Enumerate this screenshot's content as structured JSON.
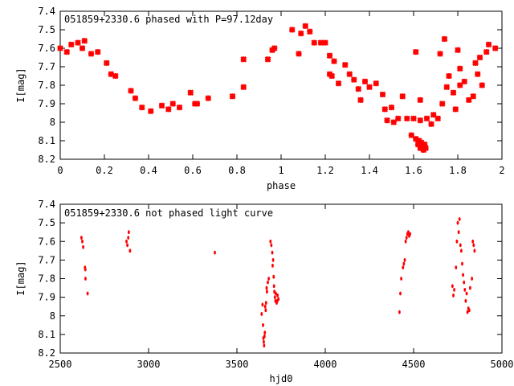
{
  "chart_data": [
    {
      "type": "scatter",
      "title": "051859+2330.6 phased with P=97.12day",
      "xlabel": "phase",
      "ylabel": "I[mag]",
      "xlim": [
        0,
        2
      ],
      "ylim": [
        7.4,
        8.2
      ],
      "y_inverted": true,
      "xticks": [
        "0",
        "0.2",
        "0.4",
        "0.6",
        "0.8",
        "1",
        "1.2",
        "1.4",
        "1.6",
        "1.8",
        "2"
      ],
      "yticks": [
        "7.4",
        "7.5",
        "7.6",
        "7.7",
        "7.8",
        "7.9",
        "8",
        "8.1",
        "8.2"
      ],
      "color": "#ff0000",
      "points": [
        [
          0.0,
          7.6
        ],
        [
          0.03,
          7.62
        ],
        [
          0.05,
          7.58
        ],
        [
          0.08,
          7.57
        ],
        [
          0.1,
          7.6
        ],
        [
          0.11,
          7.56
        ],
        [
          0.14,
          7.63
        ],
        [
          0.17,
          7.62
        ],
        [
          0.21,
          7.68
        ],
        [
          0.23,
          7.74
        ],
        [
          0.25,
          7.75
        ],
        [
          0.32,
          7.83
        ],
        [
          0.34,
          7.87
        ],
        [
          0.37,
          7.92
        ],
        [
          0.41,
          7.94
        ],
        [
          0.46,
          7.91
        ],
        [
          0.49,
          7.93
        ],
        [
          0.51,
          7.9
        ],
        [
          0.54,
          7.92
        ],
        [
          0.59,
          7.84
        ],
        [
          0.61,
          7.9
        ],
        [
          0.62,
          7.9
        ],
        [
          0.67,
          7.87
        ],
        [
          0.78,
          7.86
        ],
        [
          0.83,
          7.81
        ],
        [
          0.83,
          7.66
        ],
        [
          0.94,
          7.66
        ],
        [
          0.96,
          7.61
        ],
        [
          0.97,
          7.6
        ],
        [
          1.05,
          7.5
        ],
        [
          1.08,
          7.63
        ],
        [
          1.09,
          7.52
        ],
        [
          1.11,
          7.48
        ],
        [
          1.13,
          7.51
        ],
        [
          1.15,
          7.57
        ],
        [
          1.18,
          7.57
        ],
        [
          1.2,
          7.57
        ],
        [
          1.22,
          7.74
        ],
        [
          1.23,
          7.75
        ],
        [
          1.22,
          7.64
        ],
        [
          1.24,
          7.67
        ],
        [
          1.26,
          7.79
        ],
        [
          1.29,
          7.69
        ],
        [
          1.31,
          7.74
        ],
        [
          1.33,
          7.77
        ],
        [
          1.35,
          7.82
        ],
        [
          1.36,
          7.88
        ],
        [
          1.38,
          7.78
        ],
        [
          1.4,
          7.81
        ],
        [
          1.43,
          7.79
        ],
        [
          1.46,
          7.85
        ],
        [
          1.47,
          7.93
        ],
        [
          1.48,
          7.99
        ],
        [
          1.5,
          7.92
        ],
        [
          1.51,
          8.0
        ],
        [
          1.53,
          7.98
        ],
        [
          1.55,
          7.86
        ],
        [
          1.57,
          7.98
        ],
        [
          1.59,
          8.07
        ],
        [
          1.6,
          7.98
        ],
        [
          1.61,
          7.62
        ],
        [
          1.61,
          8.09
        ],
        [
          1.62,
          8.12
        ],
        [
          1.625,
          8.1
        ],
        [
          1.63,
          8.14
        ],
        [
          1.635,
          8.11
        ],
        [
          1.64,
          8.13
        ],
        [
          1.645,
          8.15
        ],
        [
          1.65,
          8.12
        ],
        [
          1.655,
          8.14
        ],
        [
          1.63,
          7.99
        ],
        [
          1.63,
          7.88
        ],
        [
          1.66,
          7.98
        ],
        [
          1.68,
          8.01
        ],
        [
          1.69,
          7.96
        ],
        [
          1.71,
          7.98
        ],
        [
          1.72,
          7.63
        ],
        [
          1.73,
          7.9
        ],
        [
          1.74,
          7.55
        ],
        [
          1.75,
          7.81
        ],
        [
          1.76,
          7.75
        ],
        [
          1.78,
          7.84
        ],
        [
          1.79,
          7.93
        ],
        [
          1.8,
          7.61
        ],
        [
          1.81,
          7.8
        ],
        [
          1.81,
          7.71
        ],
        [
          1.83,
          7.78
        ],
        [
          1.85,
          7.88
        ],
        [
          1.87,
          7.86
        ],
        [
          1.88,
          7.68
        ],
        [
          1.89,
          7.74
        ],
        [
          1.9,
          7.65
        ],
        [
          1.91,
          7.8
        ],
        [
          1.93,
          7.62
        ],
        [
          1.94,
          7.58
        ],
        [
          1.97,
          7.6
        ]
      ]
    },
    {
      "type": "scatter",
      "title": "051859+2330.6 not phased light curve",
      "xlabel": "hjd0",
      "ylabel": "I[mag]",
      "xlim": [
        2500,
        5000
      ],
      "ylim": [
        7.4,
        8.2
      ],
      "y_inverted": true,
      "xticks": [
        "2500",
        "3000",
        "3500",
        "4000",
        "4500",
        "5000"
      ],
      "yticks": [
        "7.4",
        "7.5",
        "7.6",
        "7.7",
        "7.8",
        "7.9",
        "8",
        "8.1",
        "8.2"
      ],
      "color": "#ff0000",
      "points": [
        [
          2620,
          7.58
        ],
        [
          2625,
          7.6
        ],
        [
          2630,
          7.63
        ],
        [
          2640,
          7.74
        ],
        [
          2642,
          7.75
        ],
        [
          2643,
          7.8
        ],
        [
          2655,
          7.88
        ],
        [
          2875,
          7.6
        ],
        [
          2880,
          7.62
        ],
        [
          2885,
          7.58
        ],
        [
          2888,
          7.55
        ],
        [
          2895,
          7.65
        ],
        [
          3375,
          7.66
        ],
        [
          3640,
          7.99
        ],
        [
          3645,
          7.94
        ],
        [
          3648,
          8.05
        ],
        [
          3650,
          8.12
        ],
        [
          3652,
          8.14
        ],
        [
          3654,
          8.16
        ],
        [
          3656,
          8.11
        ],
        [
          3658,
          8.09
        ],
        [
          3660,
          7.95
        ],
        [
          3663,
          7.97
        ],
        [
          3665,
          7.93
        ],
        [
          3668,
          7.85
        ],
        [
          3670,
          7.87
        ],
        [
          3675,
          7.82
        ],
        [
          3680,
          7.8
        ],
        [
          3690,
          7.6
        ],
        [
          3695,
          7.62
        ],
        [
          3700,
          7.66
        ],
        [
          3702,
          7.73
        ],
        [
          3705,
          7.7
        ],
        [
          3708,
          7.79
        ],
        [
          3710,
          7.84
        ],
        [
          3712,
          7.87
        ],
        [
          3715,
          7.9
        ],
        [
          3718,
          7.92
        ],
        [
          3720,
          7.88
        ],
        [
          3725,
          7.93
        ],
        [
          3728,
          7.92
        ],
        [
          3730,
          7.89
        ],
        [
          3735,
          7.91
        ],
        [
          4420,
          7.98
        ],
        [
          4425,
          7.88
        ],
        [
          4430,
          7.8
        ],
        [
          4440,
          7.74
        ],
        [
          4445,
          7.72
        ],
        [
          4450,
          7.7
        ],
        [
          4455,
          7.6
        ],
        [
          4460,
          7.58
        ],
        [
          4465,
          7.56
        ],
        [
          4470,
          7.55
        ],
        [
          4475,
          7.57
        ],
        [
          4480,
          7.56
        ],
        [
          4720,
          7.84
        ],
        [
          4725,
          7.89
        ],
        [
          4730,
          7.86
        ],
        [
          4740,
          7.74
        ],
        [
          4745,
          7.6
        ],
        [
          4750,
          7.5
        ],
        [
          4755,
          7.55
        ],
        [
          4760,
          7.48
        ],
        [
          4765,
          7.62
        ],
        [
          4770,
          7.65
        ],
        [
          4775,
          7.72
        ],
        [
          4780,
          7.78
        ],
        [
          4785,
          7.82
        ],
        [
          4790,
          7.86
        ],
        [
          4795,
          7.92
        ],
        [
          4800,
          7.88
        ],
        [
          4805,
          7.98
        ],
        [
          4810,
          7.96
        ],
        [
          4815,
          7.97
        ],
        [
          4820,
          7.85
        ],
        [
          4830,
          7.8
        ],
        [
          4835,
          7.6
        ],
        [
          4840,
          7.62
        ],
        [
          4845,
          7.65
        ]
      ]
    }
  ]
}
